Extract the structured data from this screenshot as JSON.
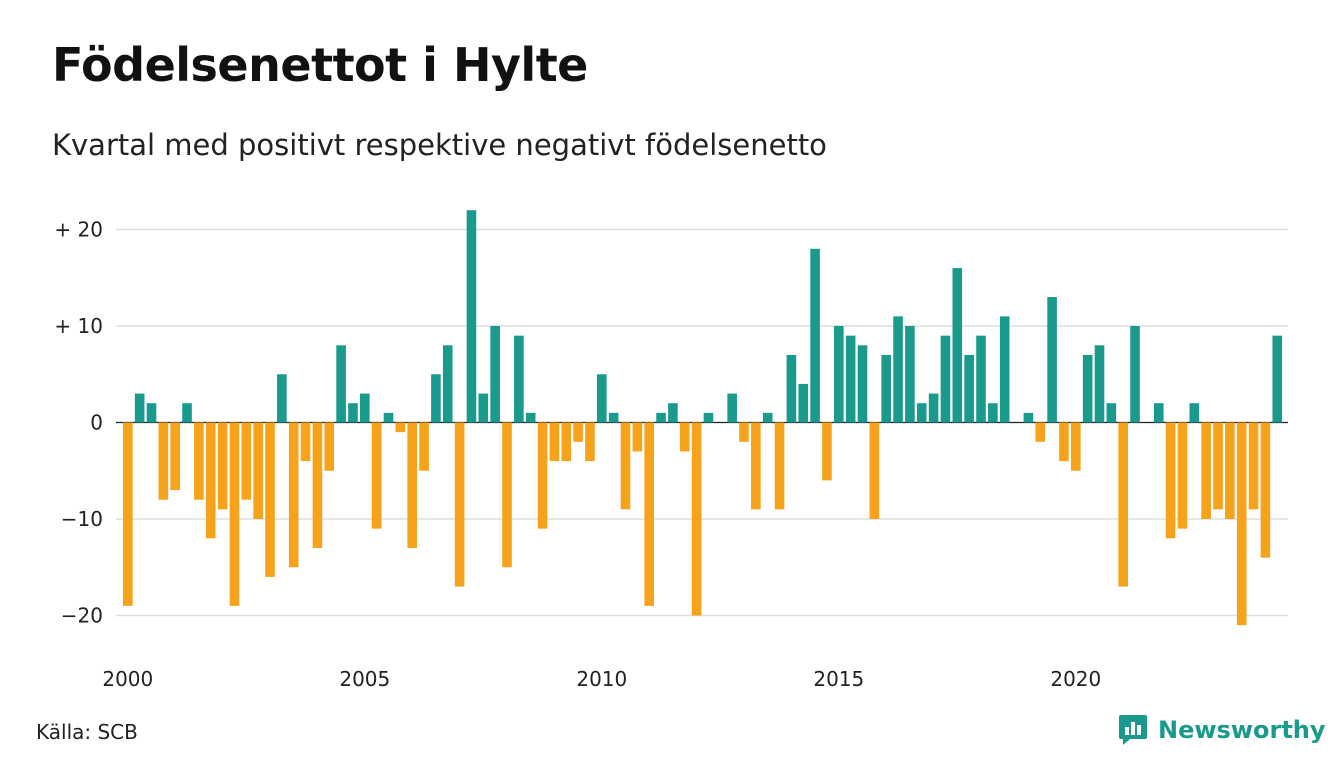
{
  "chart_data": {
    "type": "bar",
    "title": "Födelsenettot i Hylte",
    "subtitle": "Kvartal med positivt respektive negativt födelsenetto",
    "x_tick_labels": [
      "2000",
      "2005",
      "2010",
      "2015",
      "2020"
    ],
    "y_tick_labels": [
      "+ 20",
      "+ 10",
      "0",
      "−10",
      "−20"
    ],
    "y_ticks": [
      20,
      10,
      0,
      -10,
      -20
    ],
    "ylim": [
      -23,
      22
    ],
    "grid": true,
    "start_year": 2000,
    "values": [
      -19,
      3,
      2,
      -8,
      -7,
      2,
      -8,
      -12,
      -9,
      -19,
      -8,
      -10,
      -16,
      5,
      -15,
      -4,
      -13,
      -5,
      8,
      2,
      3,
      -11,
      1,
      -1,
      -13,
      -5,
      5,
      8,
      -17,
      22,
      3,
      10,
      -15,
      9,
      1,
      -11,
      -4,
      -4,
      -2,
      -4,
      5,
      1,
      -9,
      -3,
      -19,
      1,
      2,
      -3,
      -20,
      1,
      0,
      3,
      -2,
      -9,
      1,
      -9,
      7,
      4,
      18,
      -6,
      10,
      9,
      8,
      -10,
      7,
      11,
      10,
      2,
      3,
      9,
      16,
      7,
      9,
      2,
      11,
      0,
      1,
      -2,
      13,
      -4,
      -5,
      7,
      8,
      2,
      -17,
      10,
      0,
      2,
      -12,
      -11,
      2,
      -10,
      -9,
      -10,
      -21,
      -9,
      -14,
      9
    ],
    "colors": {
      "positive": "#1a9a8c",
      "negative": "#f7a21b"
    }
  },
  "source": "Källa: SCB",
  "logo": {
    "name": "Newsworthy",
    "icon": "newsworthy-logo-icon"
  }
}
